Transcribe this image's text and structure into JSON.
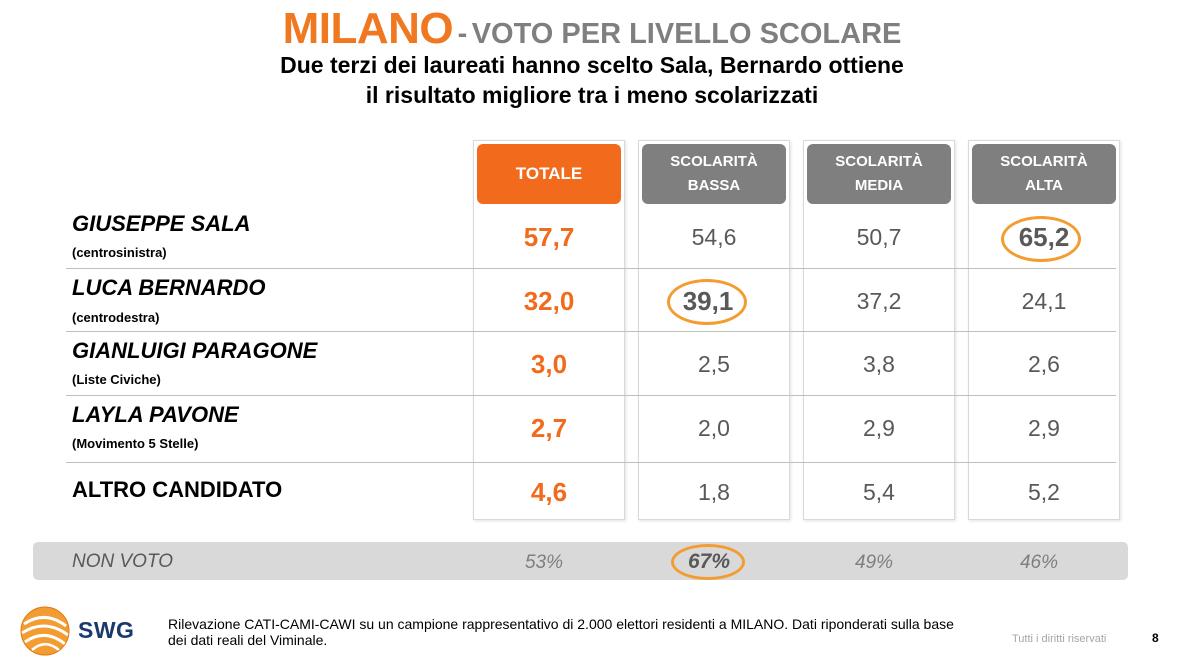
{
  "title": {
    "main": "MILANO",
    "separator": "-",
    "secondary": "VOTO PER LIVELLO SCOLARE",
    "subtitle_line1": "Due terzi dei laureati hanno scelto Sala, Bernardo ottiene",
    "subtitle_line2": "il risultato migliore tra i meno scolarizzati"
  },
  "chart_data": {
    "type": "table",
    "columns": [
      {
        "label": "TOTALE"
      },
      {
        "label_line1": "SCOLARITÀ",
        "label_line2": "BASSA"
      },
      {
        "label_line1": "SCOLARITÀ",
        "label_line2": "MEDIA"
      },
      {
        "label_line1": "SCOLARITÀ",
        "label_line2": "ALTA"
      }
    ],
    "rows": [
      {
        "candidate": "GIUSEPPE SALA",
        "party": "(centrosinistra)",
        "values": [
          "57,7",
          "54,6",
          "50,7",
          "65,2"
        ],
        "highlight": [
          3
        ]
      },
      {
        "candidate": "LUCA BERNARDO",
        "party": "(centrodestra)",
        "values": [
          "32,0",
          "39,1",
          "37,2",
          "24,1"
        ],
        "highlight": [
          1
        ]
      },
      {
        "candidate": "GIANLUIGI PARAGONE",
        "party": "(Liste Civiche)",
        "values": [
          "3,0",
          "2,5",
          "3,8",
          "2,6"
        ],
        "highlight": []
      },
      {
        "candidate": "LAYLA PAVONE",
        "party": "(Movimento 5 Stelle)",
        "values": [
          "2,7",
          "2,0",
          "2,9",
          "2,9"
        ],
        "highlight": []
      },
      {
        "candidate": "ALTRO CANDIDATO",
        "party": "",
        "values": [
          "4,6",
          "1,8",
          "5,4",
          "5,2"
        ],
        "highlight": []
      }
    ],
    "non_voto": {
      "label": "NON VOTO",
      "values": [
        "53%",
        "67%",
        "49%",
        "46%"
      ],
      "highlight": [
        1
      ]
    },
    "colors": {
      "accent": "#f26b1d",
      "header_grey": "#7f7f7f",
      "highlight_ring": "#f39c31"
    }
  },
  "footer": {
    "logo_text": "SWG",
    "note": "Rilevazione CATI-CAMI-CAWI su un campione rappresentativo di 2.000 elettori residenti a MILANO. Dati riponderati sulla base dei dati reali del Viminale.",
    "rights": "Tutti i diritti riservati",
    "page": "8"
  }
}
